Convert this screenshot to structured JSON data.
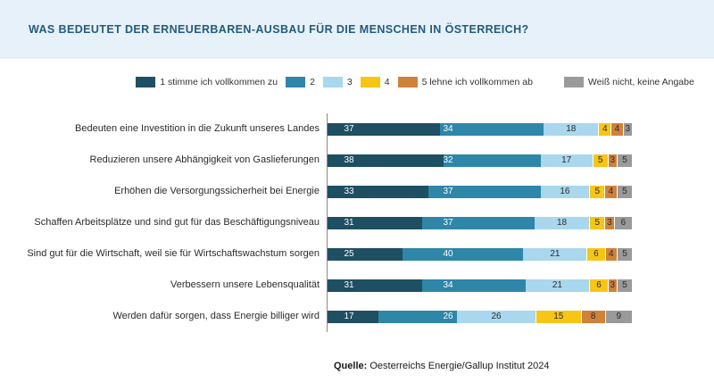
{
  "header": {
    "title": "WAS BEDEUTET DER ERNEUERBAREN-AUSBAU FÜR DIE MENSCHEN IN ÖSTERREICH?"
  },
  "chart_data": {
    "type": "bar",
    "orientation": "horizontal",
    "stacked": true,
    "title": "WAS BEDEUTET DER ERNEUERBAREN-AUSBAU FÜR DIE MENSCHEN IN ÖSTERREICH?",
    "xlim": [
      0,
      100
    ],
    "unit": "percent",
    "legend_position": "top",
    "categories": [
      "Bedeuten eine Investition in die Zukunft unseres Landes",
      "Reduzieren unsere Abhängigkeit von Gaslieferungen",
      "Erhöhen die Versorgungssicherheit bei Energie",
      "Schaffen Arbeitsplätze und sind gut für das Beschäftigungsniveau",
      "Sind gut für die Wirtschaft, weil sie für Wirtschaftswachstum sorgen",
      "Verbessern unsere Lebensqualität",
      "Werden dafür sorgen, dass Energie billiger wird"
    ],
    "series": [
      {
        "name": "1 stimme ich vollkommen zu",
        "color": "#1e4f63",
        "label_color": "#ffffff",
        "values": [
          37,
          38,
          33,
          31,
          25,
          31,
          17
        ]
      },
      {
        "name": "2",
        "color": "#2e86a8",
        "label_color": "#ffffff",
        "values": [
          34,
          32,
          37,
          37,
          40,
          34,
          26
        ]
      },
      {
        "name": "3",
        "color": "#a8d7ee",
        "label_color": "#2b2b2b",
        "values": [
          18,
          17,
          16,
          18,
          21,
          21,
          26
        ]
      },
      {
        "name": "4",
        "color": "#f7c515",
        "label_color": "#2b2b2b",
        "values": [
          4,
          5,
          5,
          5,
          6,
          6,
          15
        ]
      },
      {
        "name": "5 lehne ich vollkommen ab",
        "color": "#d0813a",
        "label_color": "#2b2b2b",
        "values": [
          4,
          3,
          4,
          3,
          4,
          3,
          8
        ]
      },
      {
        "name": "Weiß nicht, keine Angabe",
        "color": "#9a9a9a",
        "label_color": "#2b2b2b",
        "values": [
          3,
          5,
          5,
          6,
          5,
          5,
          9
        ]
      }
    ]
  },
  "source": {
    "prefix": "Quelle:",
    "text": " Oesterreichs Energie/Gallup Institut 2024"
  }
}
